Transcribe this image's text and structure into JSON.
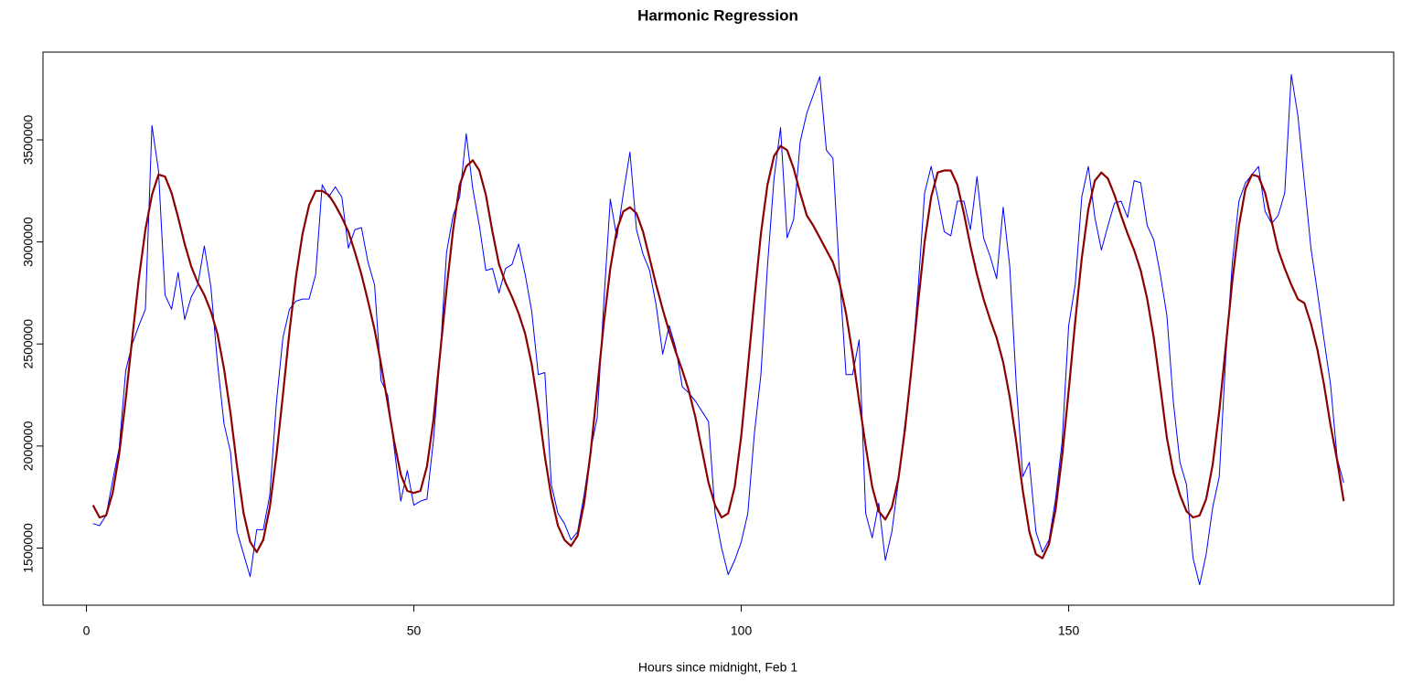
{
  "chart_data": {
    "type": "line",
    "title": "Harmonic Regression",
    "x_label": "Hours since midnight, Feb 1",
    "x": [
      1,
      2,
      3,
      4,
      5,
      6,
      7,
      8,
      9,
      10,
      11,
      12,
      13,
      14,
      15,
      16,
      17,
      18,
      19,
      20,
      21,
      22,
      23,
      24,
      25,
      26,
      27,
      28,
      29,
      30,
      31,
      32,
      33,
      34,
      35,
      36,
      37,
      38,
      39,
      40,
      41,
      42,
      43,
      44,
      45,
      46,
      47,
      48,
      49,
      50,
      51,
      52,
      53,
      54,
      55,
      56,
      57,
      58,
      59,
      60,
      61,
      62,
      63,
      64,
      65,
      66,
      67,
      68,
      69,
      70,
      71,
      72,
      73,
      74,
      75,
      76,
      77,
      78,
      79,
      80,
      81,
      82,
      83,
      84,
      85,
      86,
      87,
      88,
      89,
      90,
      91,
      92,
      93,
      94,
      95,
      96,
      97,
      98,
      99,
      100,
      101,
      102,
      103,
      104,
      105,
      106,
      107,
      108,
      109,
      110,
      111,
      112,
      113,
      114,
      115,
      116,
      117,
      118,
      119,
      120,
      121,
      122,
      123,
      124,
      125,
      126,
      127,
      128,
      129,
      130,
      131,
      132,
      133,
      134,
      135,
      136,
      137,
      138,
      139,
      140,
      141,
      142,
      143,
      144,
      145,
      146,
      147,
      148,
      149,
      150,
      151,
      152,
      153,
      154,
      155,
      156,
      157,
      158,
      159,
      160,
      161,
      162,
      163,
      164,
      165,
      166,
      167,
      168,
      169,
      170,
      171,
      172,
      173,
      174,
      175,
      176,
      177,
      178,
      179,
      180,
      181,
      182,
      183,
      184,
      185,
      186,
      187,
      188,
      189,
      190,
      191,
      192
    ],
    "series": [
      {
        "color": "#0000ff",
        "width": 1,
        "values": [
          1620000,
          1610000,
          1660000,
          1830000,
          1990000,
          2370000,
          2500000,
          2590000,
          2670000,
          3570000,
          3350000,
          2740000,
          2670000,
          2850000,
          2620000,
          2730000,
          2790000,
          2980000,
          2780000,
          2410000,
          2110000,
          1970000,
          1580000,
          1470000,
          1360000,
          1590000,
          1590000,
          1760000,
          2210000,
          2530000,
          2670000,
          2710000,
          2720000,
          2720000,
          2840000,
          3280000,
          3220000,
          3270000,
          3220000,
          2970000,
          3060000,
          3070000,
          2900000,
          2790000,
          2320000,
          2250000,
          1990000,
          1730000,
          1880000,
          1710000,
          1730000,
          1740000,
          2030000,
          2440000,
          2950000,
          3130000,
          3220000,
          3530000,
          3260000,
          3080000,
          2860000,
          2870000,
          2750000,
          2870000,
          2890000,
          2990000,
          2840000,
          2660000,
          2350000,
          2360000,
          1810000,
          1670000,
          1620000,
          1540000,
          1580000,
          1760000,
          1980000,
          2140000,
          2700000,
          3210000,
          3020000,
          3240000,
          3440000,
          3060000,
          2940000,
          2860000,
          2690000,
          2450000,
          2590000,
          2480000,
          2290000,
          2260000,
          2220000,
          2170000,
          2120000,
          1670000,
          1500000,
          1370000,
          1440000,
          1530000,
          1670000,
          2060000,
          2350000,
          2880000,
          3310000,
          3560000,
          3020000,
          3110000,
          3490000,
          3630000,
          3720000,
          3810000,
          3450000,
          3410000,
          2840000,
          2350000,
          2350000,
          2520000,
          1670000,
          1550000,
          1720000,
          1440000,
          1580000,
          1830000,
          2110000,
          2370000,
          2770000,
          3240000,
          3370000,
          3220000,
          3050000,
          3030000,
          3200000,
          3200000,
          3060000,
          3320000,
          3020000,
          2930000,
          2820000,
          3170000,
          2880000,
          2300000,
          1850000,
          1920000,
          1580000,
          1480000,
          1540000,
          1740000,
          2020000,
          2590000,
          2790000,
          3220000,
          3370000,
          3120000,
          2960000,
          3080000,
          3190000,
          3200000,
          3120000,
          3300000,
          3290000,
          3080000,
          3010000,
          2840000,
          2640000,
          2210000,
          1920000,
          1810000,
          1450000,
          1320000,
          1470000,
          1700000,
          1850000,
          2440000,
          2900000,
          3200000,
          3290000,
          3330000,
          3370000,
          3150000,
          3090000,
          3130000,
          3240000,
          3820000,
          3620000,
          3290000,
          2970000,
          2750000,
          2520000,
          2300000,
          1940000,
          1820000
        ]
      },
      {
        "color": "#8b0000",
        "width": 2.2,
        "values": [
          1710000,
          1650000,
          1660000,
          1770000,
          1960000,
          2230000,
          2530000,
          2820000,
          3060000,
          3230000,
          3330000,
          3320000,
          3240000,
          3120000,
          2990000,
          2880000,
          2800000,
          2740000,
          2660000,
          2550000,
          2380000,
          2160000,
          1900000,
          1670000,
          1530000,
          1480000,
          1540000,
          1700000,
          1950000,
          2250000,
          2560000,
          2830000,
          3040000,
          3180000,
          3250000,
          3250000,
          3230000,
          3180000,
          3120000,
          3050000,
          2950000,
          2840000,
          2710000,
          2570000,
          2400000,
          2210000,
          2020000,
          1860000,
          1780000,
          1770000,
          1780000,
          1900000,
          2130000,
          2450000,
          2770000,
          3060000,
          3280000,
          3370000,
          3400000,
          3350000,
          3230000,
          3050000,
          2890000,
          2800000,
          2730000,
          2650000,
          2550000,
          2400000,
          2190000,
          1950000,
          1750000,
          1610000,
          1540000,
          1510000,
          1560000,
          1720000,
          1970000,
          2280000,
          2600000,
          2870000,
          3060000,
          3150000,
          3170000,
          3140000,
          3050000,
          2920000,
          2790000,
          2670000,
          2560000,
          2460000,
          2370000,
          2270000,
          2140000,
          1980000,
          1820000,
          1710000,
          1650000,
          1670000,
          1800000,
          2050000,
          2380000,
          2720000,
          3040000,
          3280000,
          3420000,
          3470000,
          3450000,
          3360000,
          3240000,
          3130000,
          3080000,
          3020000,
          2960000,
          2900000,
          2800000,
          2650000,
          2450000,
          2220000,
          2000000,
          1800000,
          1680000,
          1640000,
          1700000,
          1840000,
          2080000,
          2380000,
          2700000,
          3000000,
          3220000,
          3340000,
          3350000,
          3350000,
          3280000,
          3140000,
          2980000,
          2840000,
          2720000,
          2620000,
          2530000,
          2410000,
          2240000,
          2020000,
          1780000,
          1580000,
          1470000,
          1450000,
          1520000,
          1690000,
          1950000,
          2270000,
          2610000,
          2920000,
          3160000,
          3300000,
          3340000,
          3310000,
          3230000,
          3130000,
          3040000,
          2960000,
          2860000,
          2720000,
          2530000,
          2290000,
          2040000,
          1870000,
          1760000,
          1680000,
          1650000,
          1660000,
          1740000,
          1910000,
          2170000,
          2490000,
          2810000,
          3080000,
          3260000,
          3330000,
          3320000,
          3240000,
          3100000,
          2960000,
          2870000,
          2790000,
          2720000,
          2700000,
          2600000,
          2470000,
          2300000,
          2100000,
          1930000,
          1730000
        ]
      }
    ],
    "xlim": [
      -6.64,
      199.64
    ],
    "xticks": [
      0,
      50,
      100,
      150
    ],
    "ylim": [
      1220000,
      3930000
    ],
    "yticks": [
      1500000,
      2000000,
      2500000,
      3000000,
      3500000
    ]
  }
}
